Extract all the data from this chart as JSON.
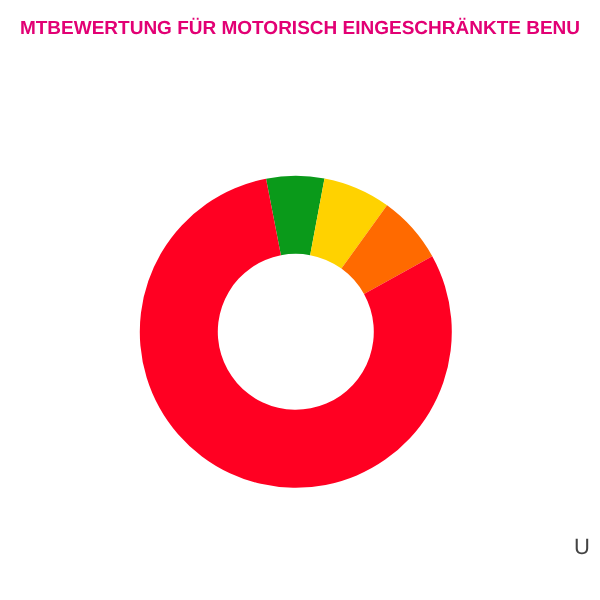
{
  "chart_data": {
    "type": "donut",
    "title": "MTBEWERTUNG FÜR MOTORISCH EINGESCHRÄNKTE BENU",
    "categories": [
      null,
      null,
      null,
      null
    ],
    "values": [
      6,
      7,
      7,
      80
    ],
    "colors": [
      "#0a9a1a",
      "#ffd200",
      "#ff6a00",
      "#ff0022"
    ],
    "annotations": [
      "U"
    ],
    "legend": false
  }
}
